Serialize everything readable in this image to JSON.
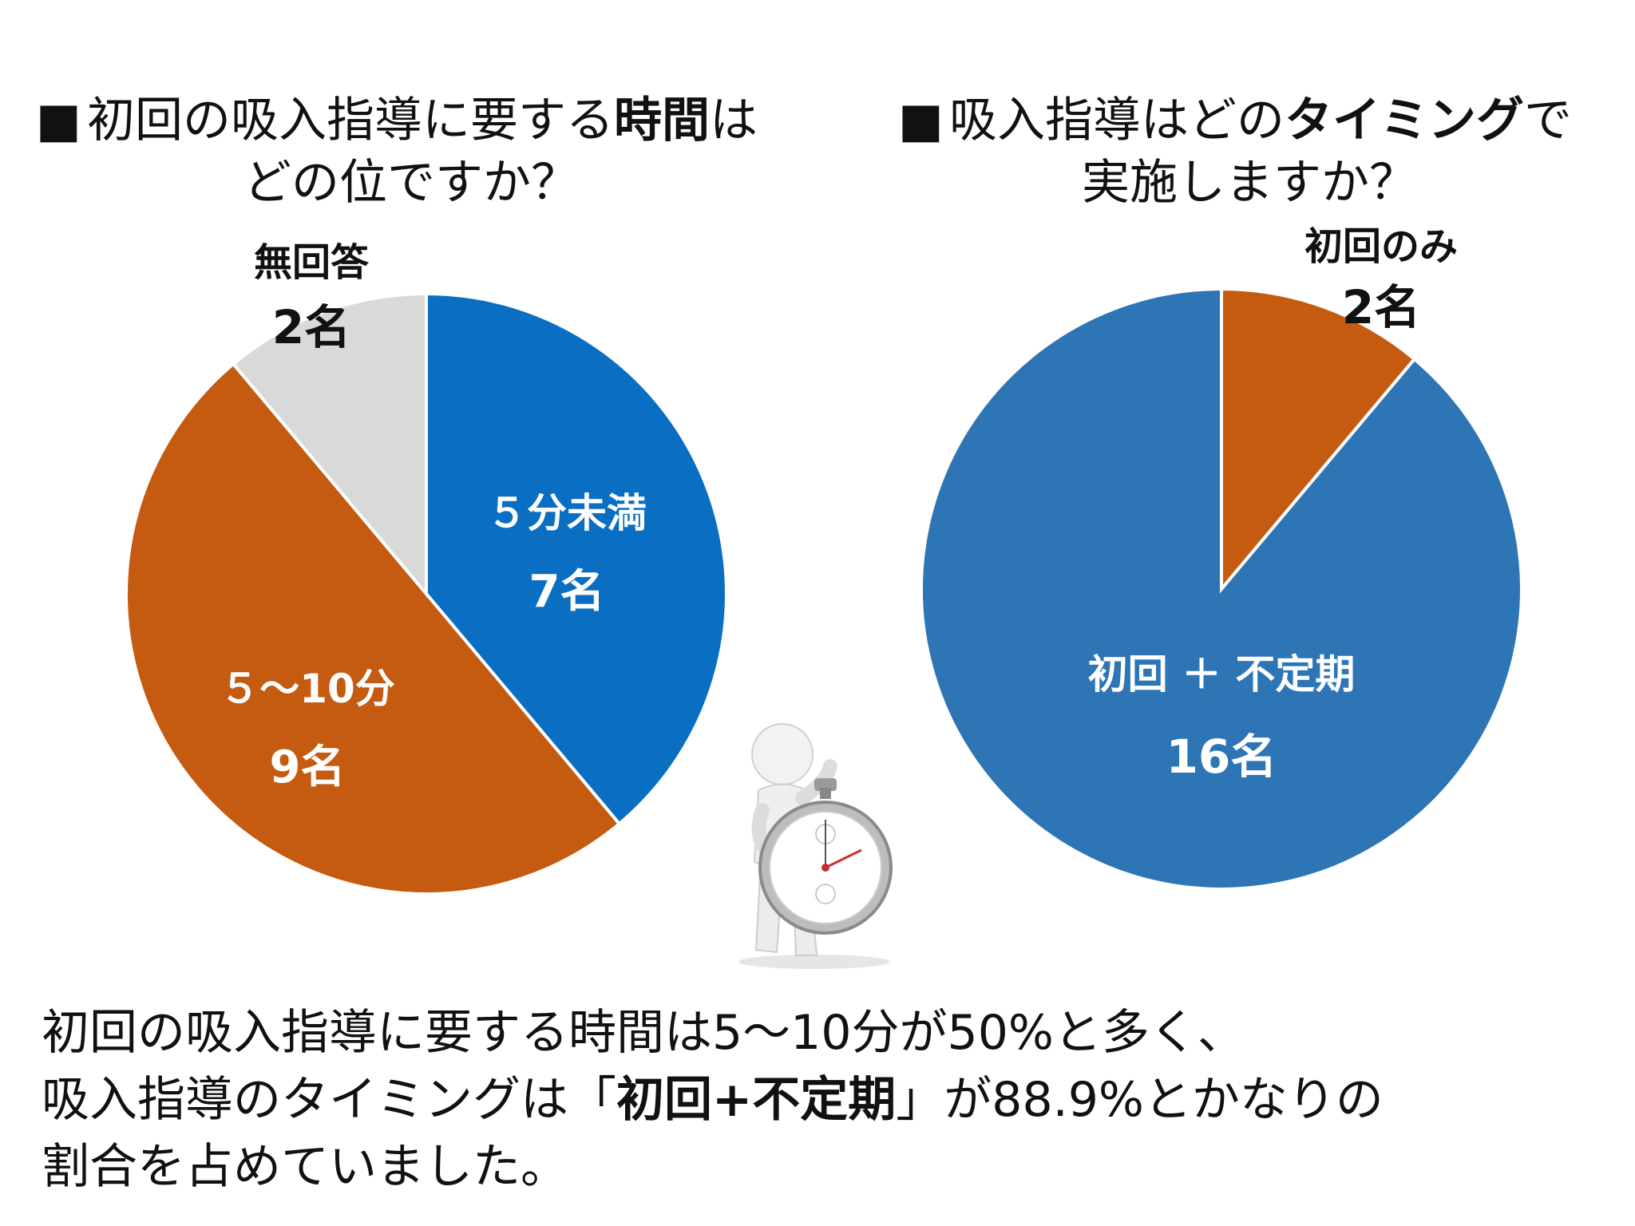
{
  "left": {
    "bullet": "■",
    "title_pre": "初回の吸入指導に要する",
    "title_bold": "時間",
    "title_post": "は",
    "title_line2": "どの位ですか？"
  },
  "right": {
    "bullet": "■",
    "title_pre": "吸入指導はどの",
    "title_bold": "タイミング",
    "title_post": "で",
    "title_line2": "実施しますか？"
  },
  "chart_data": [
    {
      "type": "pie",
      "title": "初回の吸入指導に要する時間はどの位ですか？",
      "start_angle": 0,
      "direction": "clockwise",
      "slices": [
        {
          "label": "５分未満",
          "value": 7,
          "value_label": "7名",
          "color": "#0A6FC2"
        },
        {
          "label": "５～10分",
          "value": 9,
          "value_label": "9名",
          "color": "#C55A11"
        },
        {
          "label": "無回答",
          "value": 2,
          "value_label": "2名",
          "color": "#D9D9D9"
        }
      ]
    },
    {
      "type": "pie",
      "title": "吸入指導はどのタイミングで実施しますか？",
      "start_angle": 0,
      "direction": "clockwise",
      "slices": [
        {
          "label": "初回のみ",
          "value": 2,
          "value_label": "2名",
          "color": "#C55A11"
        },
        {
          "label": "初回 ＋ 不定期",
          "value": 16,
          "value_label": "16名",
          "color": "#2E75B6"
        }
      ]
    }
  ],
  "summary": {
    "line1": "初回の吸入指導に要する時間は5～10分が50%と多く、",
    "line2_pre": "吸入指導のタイミングは「",
    "line2_bold": "初回+不定期",
    "line2_post": "」が88.9%とかなりの",
    "line3": "割合を占めていました。"
  },
  "icons": {
    "figure": "person-with-stopwatch-icon"
  }
}
